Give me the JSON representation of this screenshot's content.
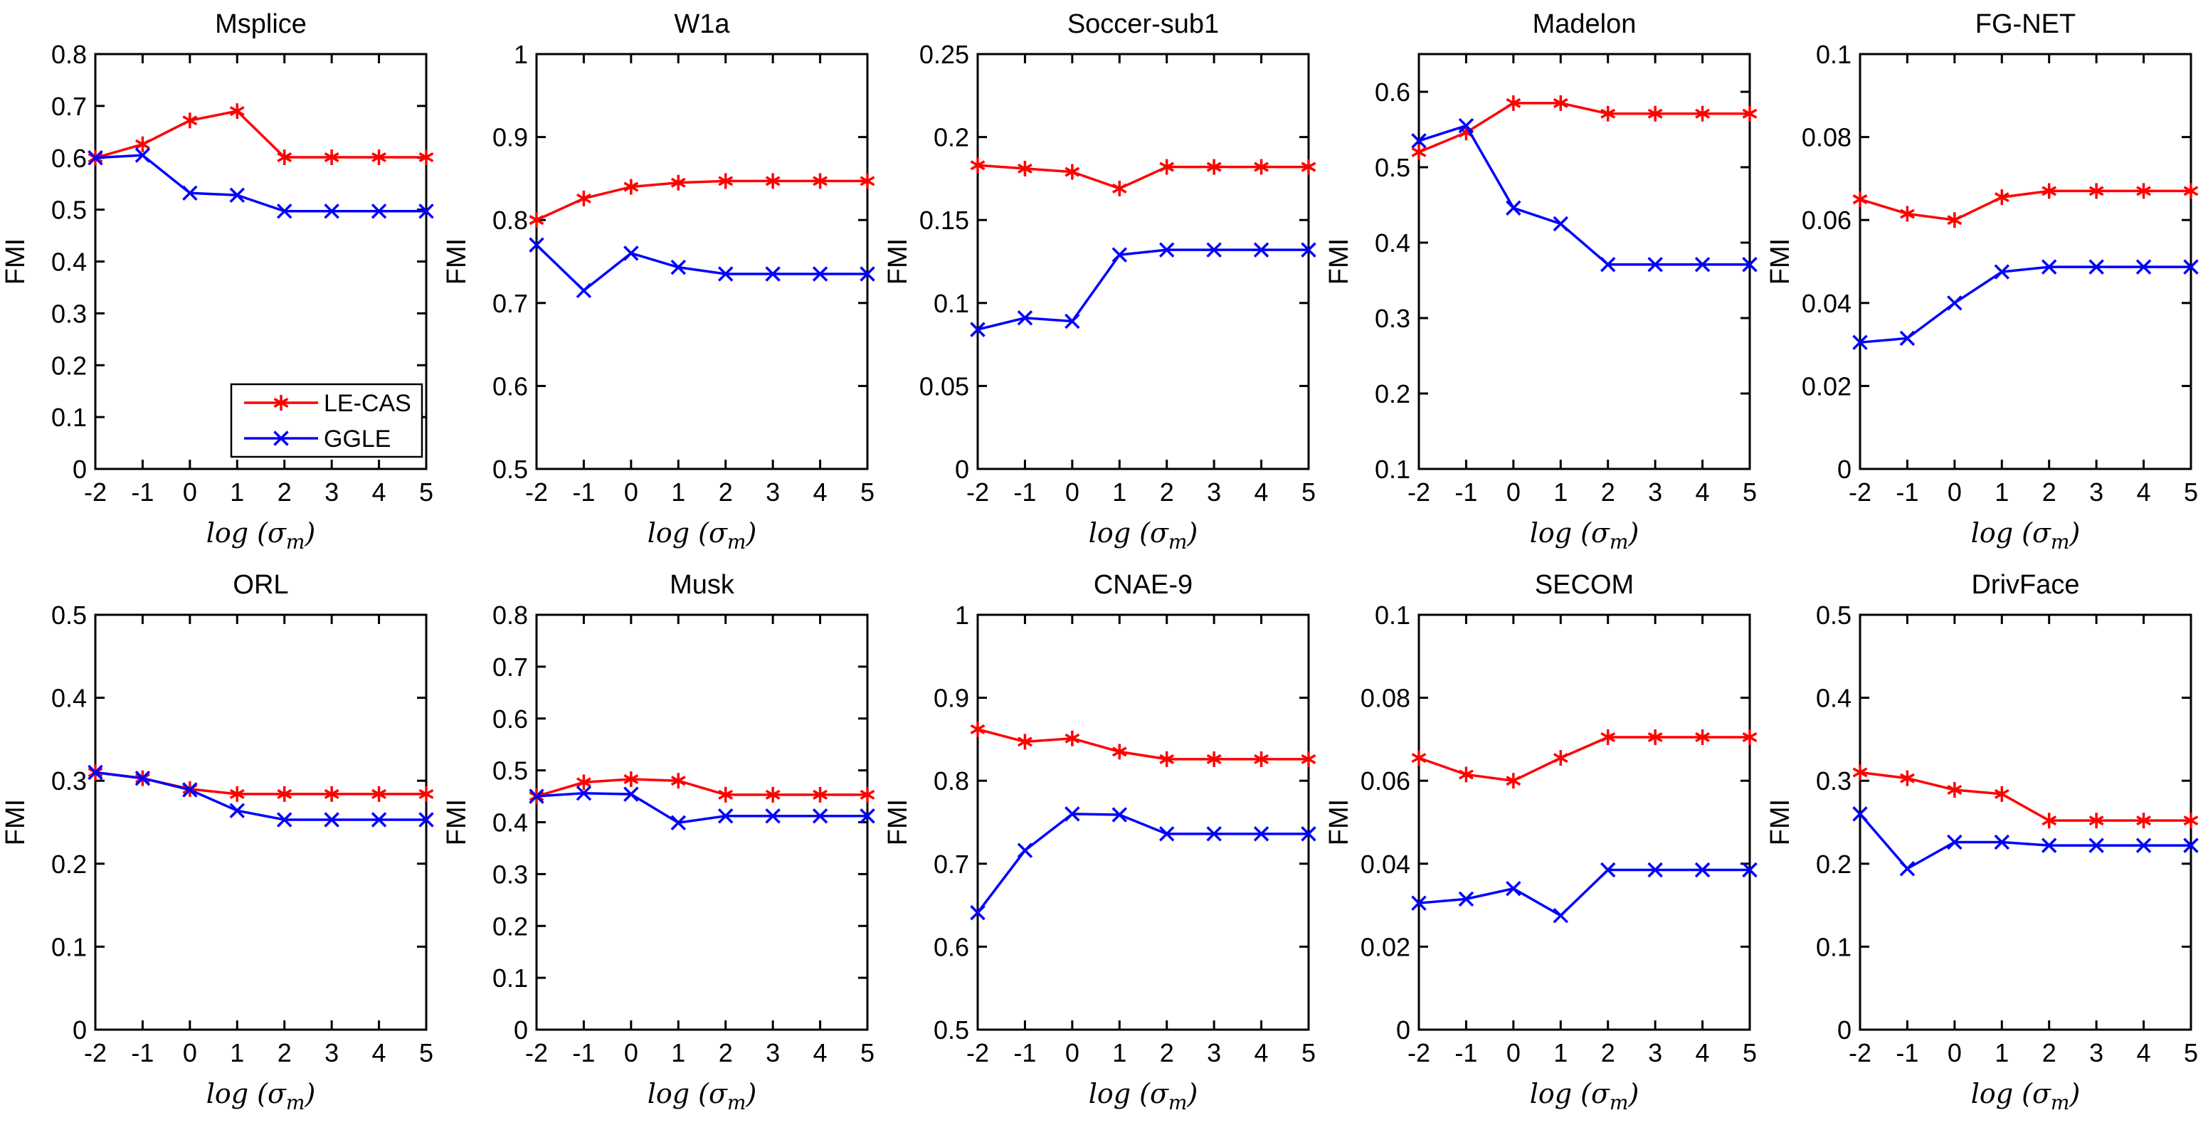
{
  "figure": {
    "background": "#ffffff",
    "axis_color": "#000000",
    "ylabel": "FMI",
    "xlabel": "log (σ_m)",
    "x_tick_labels": [
      "-2",
      "-1",
      "0",
      "1",
      "2",
      "3",
      "4",
      "5"
    ]
  },
  "legend": {
    "entries": [
      {
        "label": "LE-CAS",
        "color": "#ff0000",
        "marker": "asterisk"
      },
      {
        "label": "GGLE",
        "color": "#0000ff",
        "marker": "x"
      }
    ],
    "location": "inside bottom-right of first chart"
  },
  "chart_data": [
    {
      "type": "line",
      "title": "Msplice",
      "xlabel": "log (σ_m)",
      "ylabel": "FMI",
      "x": [
        -2,
        -1,
        0,
        1,
        2,
        3,
        4,
        5
      ],
      "xlim": [
        -2,
        5
      ],
      "xticks": [
        -2,
        -1,
        0,
        1,
        2,
        3,
        4,
        5
      ],
      "ylim": [
        0,
        0.8
      ],
      "yticks": [
        0,
        0.1,
        0.2,
        0.3,
        0.4,
        0.5,
        0.6,
        0.7,
        0.8
      ],
      "grid": false,
      "legend": true,
      "series": [
        {
          "name": "LE-CAS",
          "values": [
            0.6,
            0.626,
            0.672,
            0.69,
            0.601,
            0.601,
            0.601,
            0.601
          ]
        },
        {
          "name": "GGLE",
          "values": [
            0.6,
            0.605,
            0.532,
            0.528,
            0.497,
            0.497,
            0.497,
            0.497
          ]
        }
      ]
    },
    {
      "type": "line",
      "title": "W1a",
      "xlabel": "log (σ_m)",
      "ylabel": "FMI",
      "x": [
        -2,
        -1,
        0,
        1,
        2,
        3,
        4,
        5
      ],
      "xlim": [
        -2,
        5
      ],
      "xticks": [
        -2,
        -1,
        0,
        1,
        2,
        3,
        4,
        5
      ],
      "ylim": [
        0.5,
        1
      ],
      "yticks": [
        0.5,
        0.6,
        0.7,
        0.8,
        0.9,
        1
      ],
      "grid": false,
      "legend": false,
      "series": [
        {
          "name": "LE-CAS",
          "values": [
            0.8,
            0.826,
            0.84,
            0.845,
            0.847,
            0.847,
            0.847,
            0.847
          ]
        },
        {
          "name": "GGLE",
          "values": [
            0.77,
            0.715,
            0.76,
            0.743,
            0.735,
            0.735,
            0.735,
            0.735
          ]
        }
      ]
    },
    {
      "type": "line",
      "title": "Soccer-sub1",
      "xlabel": "log (σ_m)",
      "ylabel": "FMI",
      "x": [
        -2,
        -1,
        0,
        1,
        2,
        3,
        4,
        5
      ],
      "xlim": [
        -2,
        5
      ],
      "xticks": [
        -2,
        -1,
        0,
        1,
        2,
        3,
        4,
        5
      ],
      "ylim": [
        0,
        0.25
      ],
      "yticks": [
        0,
        0.05,
        0.1,
        0.15,
        0.2,
        0.25
      ],
      "grid": false,
      "legend": false,
      "series": [
        {
          "name": "LE-CAS",
          "values": [
            0.183,
            0.181,
            0.179,
            0.169,
            0.182,
            0.182,
            0.182,
            0.182
          ]
        },
        {
          "name": "GGLE",
          "values": [
            0.084,
            0.091,
            0.089,
            0.129,
            0.132,
            0.132,
            0.132,
            0.132
          ]
        }
      ]
    },
    {
      "type": "line",
      "title": "Madelon",
      "xlabel": "log (σ_m)",
      "ylabel": "FMI",
      "x": [
        -2,
        -1,
        0,
        1,
        2,
        3,
        4,
        5
      ],
      "xlim": [
        -2,
        5
      ],
      "xticks": [
        -2,
        -1,
        0,
        1,
        2,
        3,
        4,
        5
      ],
      "ylim": [
        0.1,
        0.65
      ],
      "yticks": [
        0.1,
        0.2,
        0.3,
        0.4,
        0.5,
        0.6
      ],
      "grid": false,
      "legend": false,
      "series": [
        {
          "name": "LE-CAS",
          "values": [
            0.52,
            0.546,
            0.585,
            0.585,
            0.571,
            0.571,
            0.571,
            0.571
          ]
        },
        {
          "name": "GGLE",
          "values": [
            0.535,
            0.555,
            0.446,
            0.425,
            0.371,
            0.371,
            0.371,
            0.371
          ]
        }
      ]
    },
    {
      "type": "line",
      "title": "FG-NET",
      "xlabel": "log (σ_m)",
      "ylabel": "FMI",
      "x": [
        -2,
        -1,
        0,
        1,
        2,
        3,
        4,
        5
      ],
      "xlim": [
        -2,
        5
      ],
      "xticks": [
        -2,
        -1,
        0,
        1,
        2,
        3,
        4,
        5
      ],
      "ylim": [
        0,
        0.1
      ],
      "yticks": [
        0,
        0.02,
        0.04,
        0.06,
        0.08,
        0.1
      ],
      "grid": false,
      "legend": false,
      "series": [
        {
          "name": "LE-CAS",
          "values": [
            0.065,
            0.0615,
            0.06,
            0.0655,
            0.067,
            0.067,
            0.067,
            0.067
          ]
        },
        {
          "name": "GGLE",
          "values": [
            0.0305,
            0.0315,
            0.04,
            0.0475,
            0.0487,
            0.0487,
            0.0487,
            0.0487
          ]
        }
      ]
    },
    {
      "type": "line",
      "title": "ORL",
      "xlabel": "log (σ_m)",
      "ylabel": "FMI",
      "x": [
        -2,
        -1,
        0,
        1,
        2,
        3,
        4,
        5
      ],
      "xlim": [
        -2,
        5
      ],
      "xticks": [
        -2,
        -1,
        0,
        1,
        2,
        3,
        4,
        5
      ],
      "ylim": [
        0,
        0.5
      ],
      "yticks": [
        0,
        0.1,
        0.2,
        0.3,
        0.4,
        0.5
      ],
      "grid": false,
      "legend": false,
      "series": [
        {
          "name": "LE-CAS",
          "values": [
            0.31,
            0.303,
            0.29,
            0.284,
            0.284,
            0.284,
            0.284,
            0.284
          ]
        },
        {
          "name": "GGLE",
          "values": [
            0.31,
            0.303,
            0.289,
            0.264,
            0.253,
            0.253,
            0.253,
            0.253
          ]
        }
      ]
    },
    {
      "type": "line",
      "title": "Musk",
      "xlabel": "log (σ_m)",
      "ylabel": "FMI",
      "x": [
        -2,
        -1,
        0,
        1,
        2,
        3,
        4,
        5
      ],
      "xlim": [
        -2,
        5
      ],
      "xticks": [
        -2,
        -1,
        0,
        1,
        2,
        3,
        4,
        5
      ],
      "ylim": [
        0,
        0.8
      ],
      "yticks": [
        0,
        0.1,
        0.2,
        0.3,
        0.4,
        0.5,
        0.6,
        0.7,
        0.8
      ],
      "grid": false,
      "legend": false,
      "series": [
        {
          "name": "LE-CAS",
          "values": [
            0.45,
            0.477,
            0.483,
            0.48,
            0.453,
            0.453,
            0.453,
            0.453
          ]
        },
        {
          "name": "GGLE",
          "values": [
            0.45,
            0.456,
            0.454,
            0.399,
            0.412,
            0.412,
            0.412,
            0.412
          ]
        }
      ]
    },
    {
      "type": "line",
      "title": "CNAE-9",
      "xlabel": "log (σ_m)",
      "ylabel": "FMI",
      "x": [
        -2,
        -1,
        0,
        1,
        2,
        3,
        4,
        5
      ],
      "xlim": [
        -2,
        5
      ],
      "xticks": [
        -2,
        -1,
        0,
        1,
        2,
        3,
        4,
        5
      ],
      "ylim": [
        0.5,
        1
      ],
      "yticks": [
        0.5,
        0.6,
        0.7,
        0.8,
        0.9,
        1
      ],
      "grid": false,
      "legend": false,
      "series": [
        {
          "name": "LE-CAS",
          "values": [
            0.862,
            0.847,
            0.851,
            0.835,
            0.826,
            0.826,
            0.826,
            0.826
          ]
        },
        {
          "name": "GGLE",
          "values": [
            0.641,
            0.716,
            0.76,
            0.759,
            0.736,
            0.736,
            0.736,
            0.736
          ]
        }
      ]
    },
    {
      "type": "line",
      "title": "SECOM",
      "xlabel": "log (σ_m)",
      "ylabel": "FMI",
      "x": [
        -2,
        -1,
        0,
        1,
        2,
        3,
        4,
        5
      ],
      "xlim": [
        -2,
        5
      ],
      "xticks": [
        -2,
        -1,
        0,
        1,
        2,
        3,
        4,
        5
      ],
      "ylim": [
        0,
        0.1
      ],
      "yticks": [
        0,
        0.02,
        0.04,
        0.06,
        0.08,
        0.1
      ],
      "grid": false,
      "legend": false,
      "series": [
        {
          "name": "LE-CAS",
          "values": [
            0.0655,
            0.0615,
            0.06,
            0.0655,
            0.0705,
            0.0705,
            0.0705,
            0.0705
          ]
        },
        {
          "name": "GGLE",
          "values": [
            0.0305,
            0.0315,
            0.034,
            0.0275,
            0.0385,
            0.0385,
            0.0385,
            0.0385
          ]
        }
      ]
    },
    {
      "type": "line",
      "title": "DrivFace",
      "xlabel": "log (σ_m)",
      "ylabel": "FMI",
      "x": [
        -2,
        -1,
        0,
        1,
        2,
        3,
        4,
        5
      ],
      "xlim": [
        -2,
        5
      ],
      "xticks": [
        -2,
        -1,
        0,
        1,
        2,
        3,
        4,
        5
      ],
      "ylim": [
        0,
        0.5
      ],
      "yticks": [
        0,
        0.1,
        0.2,
        0.3,
        0.4,
        0.5
      ],
      "grid": false,
      "legend": false,
      "series": [
        {
          "name": "LE-CAS",
          "values": [
            0.31,
            0.303,
            0.289,
            0.284,
            0.252,
            0.252,
            0.252,
            0.252
          ]
        },
        {
          "name": "GGLE",
          "values": [
            0.26,
            0.194,
            0.226,
            0.226,
            0.222,
            0.222,
            0.222,
            0.222
          ]
        }
      ]
    }
  ]
}
